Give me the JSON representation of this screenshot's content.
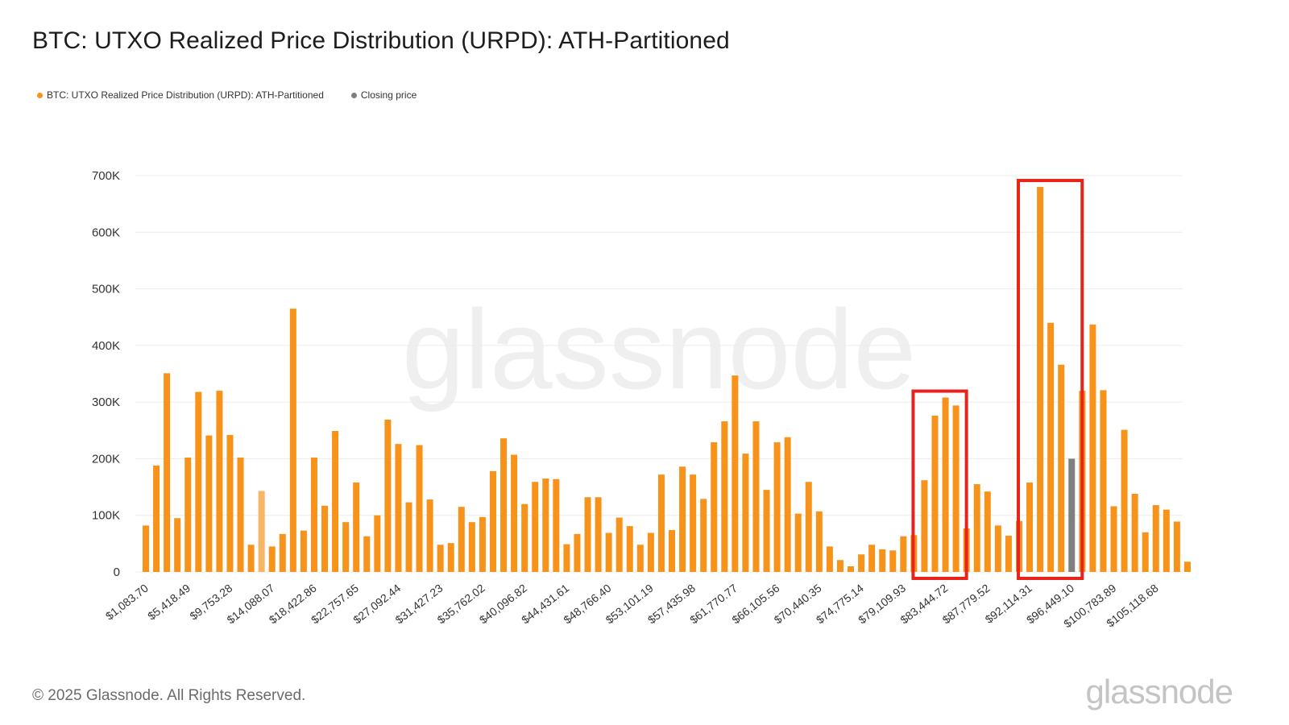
{
  "title": "BTC: UTXO Realized Price Distribution (URPD): ATH-Partitioned",
  "legend": [
    {
      "label": "BTC: UTXO Realized Price Distribution (URPD): ATH-Partitioned",
      "color": "#f7931a"
    },
    {
      "label": "Closing price",
      "color": "#7f7f7f"
    }
  ],
  "footer": "© 2025 Glassnode. All Rights Reserved.",
  "logo_text": "glassnode",
  "watermark_text": "glassnode",
  "colors": {
    "bar": "#f7931a",
    "bar_light": "#f8b565",
    "closing": "#7f7f7f",
    "highlight": "#e8231b",
    "grid": "#ececec"
  },
  "chart_data": {
    "type": "bar",
    "ylim": [
      0,
      700000
    ],
    "yticks": [
      0,
      100000,
      200000,
      300000,
      400000,
      500000,
      600000,
      700000
    ],
    "ytick_labels": [
      "0",
      "100K",
      "200K",
      "300K",
      "400K",
      "500K",
      "600K",
      "700K"
    ],
    "xtick_labels": [
      "$1,083.70",
      "$5,418.49",
      "$9,753.28",
      "$14,088.07",
      "$18,422.86",
      "$22,757.65",
      "$27,092.44",
      "$31,427.23",
      "$35,762.02",
      "$40,096.82",
      "$44,431.61",
      "$48,766.40",
      "$53,101.19",
      "$57,435.98",
      "$61,770.77",
      "$66,105.56",
      "$70,440.35",
      "$74,775.14",
      "$79,109.93",
      "$83,444.72",
      "$87,779.52",
      "$92,114.31",
      "$96,449.10",
      "$100,783.89",
      "$105,118.68"
    ],
    "bin_start": 1083.7,
    "bin_width": 1083.7,
    "values": [
      82000,
      188000,
      351000,
      95000,
      202000,
      318000,
      241000,
      320000,
      242000,
      202000,
      48000,
      143000,
      45000,
      67000,
      465000,
      73000,
      202000,
      117000,
      249000,
      88000,
      158000,
      63000,
      100000,
      269000,
      226000,
      123000,
      224000,
      128000,
      48000,
      51000,
      115000,
      88000,
      97000,
      178000,
      236000,
      207000,
      120000,
      159000,
      165000,
      164000,
      49000,
      67000,
      132000,
      132000,
      69000,
      96000,
      81000,
      48000,
      69000,
      172000,
      74000,
      186000,
      172000,
      129000,
      229000,
      266000,
      347000,
      209000,
      266000,
      145000,
      229000,
      238000,
      103000,
      159000,
      107000,
      45000,
      21000,
      10000,
      31000,
      48000,
      40000,
      38000,
      63000,
      65000,
      162000,
      276000,
      308000,
      294000,
      77000,
      155000,
      142000,
      82000,
      64000,
      90000,
      158000,
      680000,
      440000,
      366000,
      200000,
      320000,
      437000,
      321000,
      116000,
      251000,
      138000,
      70000,
      118000,
      110000,
      89000,
      18000
    ],
    "light_bars": [
      11
    ],
    "closing_price_bar": 88,
    "highlight_ranges": [
      [
        74,
        77
      ],
      [
        84,
        88
      ]
    ]
  }
}
